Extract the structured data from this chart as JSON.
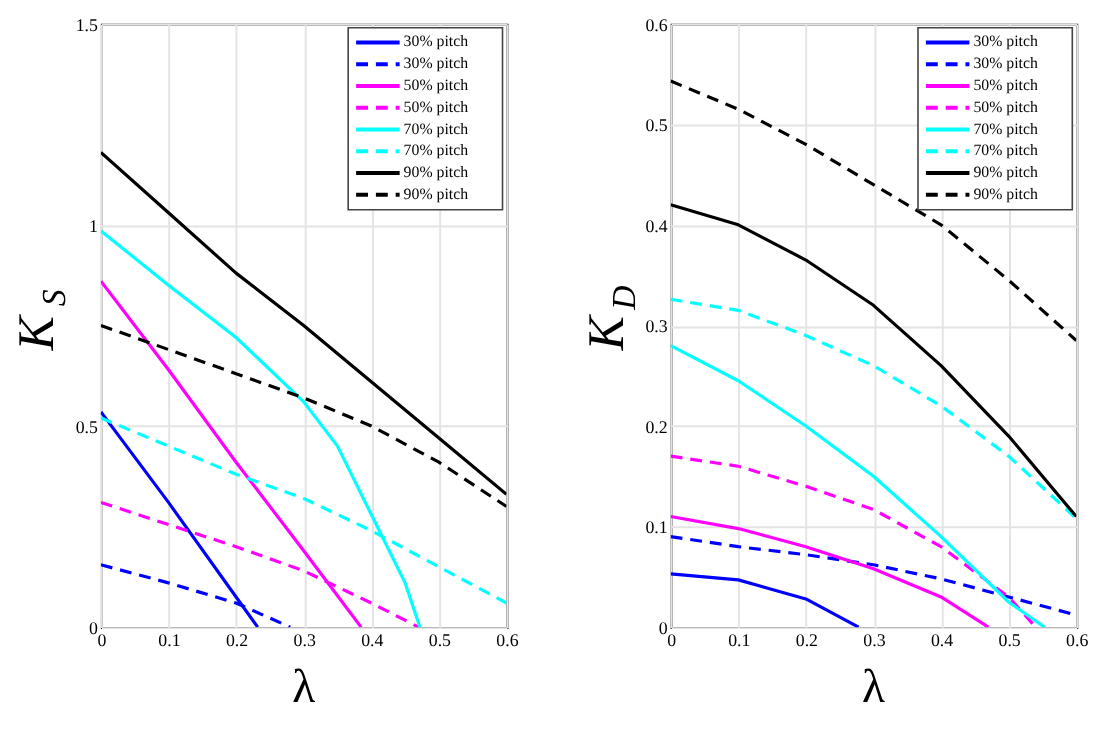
{
  "chart_data": [
    {
      "type": "line",
      "xlabel": "λ",
      "ylabel": "K$_{S}$",
      "xlim": [
        0,
        0.6
      ],
      "xticks": [
        0,
        0.1,
        0.2,
        0.3,
        0.4,
        0.5,
        0.6
      ],
      "ylim": [
        0,
        1.5
      ],
      "yticks": [
        0,
        0.5,
        1,
        1.5
      ],
      "grid": true,
      "legend": "top right",
      "series": [
        {
          "name": "30% pitch",
          "color": "#0000ff",
          "line_style": "solid",
          "x": [
            0,
            0.1,
            0.2,
            0.232
          ],
          "values": [
            0.535,
            0.31,
            0.075,
            0
          ]
        },
        {
          "name": "30% pitch",
          "color": "#0000ff",
          "line_style": "dashed",
          "x": [
            0,
            0.1,
            0.2,
            0.28
          ],
          "values": [
            0.155,
            0.11,
            0.06,
            0
          ]
        },
        {
          "name": "50% pitch",
          "color": "#ff00ff",
          "line_style": "solid",
          "x": [
            0,
            0.1,
            0.2,
            0.3,
            0.385
          ],
          "values": [
            0.86,
            0.64,
            0.41,
            0.19,
            0
          ]
        },
        {
          "name": "50% pitch",
          "color": "#ff00ff",
          "line_style": "dashed",
          "x": [
            0,
            0.1,
            0.2,
            0.3,
            0.4,
            0.47
          ],
          "values": [
            0.31,
            0.255,
            0.2,
            0.14,
            0.06,
            0
          ]
        },
        {
          "name": "70% pitch",
          "color": "#00ffff",
          "line_style": "solid",
          "x": [
            0,
            0.1,
            0.2,
            0.3,
            0.35,
            0.4,
            0.45,
            0.472
          ],
          "values": [
            0.985,
            0.85,
            0.72,
            0.56,
            0.45,
            0.28,
            0.11,
            0
          ]
        },
        {
          "name": "70% pitch",
          "color": "#00ffff",
          "line_style": "dashed",
          "x": [
            0,
            0.1,
            0.2,
            0.3,
            0.4,
            0.5,
            0.6
          ],
          "values": [
            0.52,
            0.45,
            0.38,
            0.32,
            0.24,
            0.15,
            0.06
          ]
        },
        {
          "name": "90% pitch",
          "color": "#000000",
          "line_style": "solid",
          "x": [
            0,
            0.1,
            0.2,
            0.3,
            0.4,
            0.5,
            0.6
          ],
          "values": [
            1.18,
            1.03,
            0.88,
            0.75,
            0.61,
            0.47,
            0.33
          ]
        },
        {
          "name": "90% pitch",
          "color": "#000000",
          "line_style": "dashed",
          "x": [
            0,
            0.1,
            0.2,
            0.3,
            0.4,
            0.5,
            0.6
          ],
          "values": [
            0.75,
            0.69,
            0.63,
            0.57,
            0.5,
            0.41,
            0.3
          ]
        }
      ]
    },
    {
      "type": "line",
      "xlabel": "λ",
      "ylabel": "K$_{D}$",
      "xlim": [
        0,
        0.6
      ],
      "xticks": [
        0,
        0.1,
        0.2,
        0.3,
        0.4,
        0.5,
        0.6
      ],
      "ylim": [
        0,
        0.6
      ],
      "yticks": [
        0,
        0.1,
        0.2,
        0.3,
        0.4,
        0.5,
        0.6
      ],
      "grid": true,
      "legend": "top right",
      "series": [
        {
          "name": "30% pitch",
          "color": "#0000ff",
          "line_style": "solid",
          "x": [
            0,
            0.1,
            0.2,
            0.278
          ],
          "values": [
            0.053,
            0.047,
            0.028,
            0
          ]
        },
        {
          "name": "30% pitch",
          "color": "#0000ff",
          "line_style": "dashed",
          "x": [
            0,
            0.1,
            0.2,
            0.3,
            0.4,
            0.5,
            0.6
          ],
          "values": [
            0.09,
            0.08,
            0.072,
            0.062,
            0.048,
            0.03,
            0.012
          ]
        },
        {
          "name": "50% pitch",
          "color": "#ff00ff",
          "line_style": "solid",
          "x": [
            0,
            0.1,
            0.2,
            0.3,
            0.4,
            0.47
          ],
          "values": [
            0.11,
            0.098,
            0.08,
            0.058,
            0.03,
            0
          ]
        },
        {
          "name": "50% pitch",
          "color": "#ff00ff",
          "line_style": "dashed",
          "x": [
            0,
            0.1,
            0.2,
            0.3,
            0.4,
            0.5,
            0.54
          ],
          "values": [
            0.17,
            0.16,
            0.14,
            0.117,
            0.08,
            0.03,
            0
          ]
        },
        {
          "name": "70% pitch",
          "color": "#00ffff",
          "line_style": "solid",
          "x": [
            0,
            0.1,
            0.2,
            0.3,
            0.4,
            0.5,
            0.553
          ],
          "values": [
            0.28,
            0.245,
            0.2,
            0.15,
            0.09,
            0.025,
            0
          ]
        },
        {
          "name": "70% pitch",
          "color": "#00ffff",
          "line_style": "dashed",
          "x": [
            0,
            0.1,
            0.2,
            0.3,
            0.4,
            0.5,
            0.6
          ],
          "values": [
            0.326,
            0.315,
            0.29,
            0.26,
            0.22,
            0.17,
            0.108
          ]
        },
        {
          "name": "90% pitch",
          "color": "#000000",
          "line_style": "solid",
          "x": [
            0,
            0.1,
            0.2,
            0.3,
            0.4,
            0.5,
            0.6
          ],
          "values": [
            0.42,
            0.4,
            0.365,
            0.32,
            0.26,
            0.19,
            0.11
          ]
        },
        {
          "name": "90% pitch",
          "color": "#000000",
          "line_style": "dashed",
          "x": [
            0,
            0.1,
            0.2,
            0.3,
            0.4,
            0.5,
            0.6
          ],
          "values": [
            0.543,
            0.515,
            0.48,
            0.44,
            0.4,
            0.345,
            0.285
          ]
        }
      ]
    }
  ]
}
